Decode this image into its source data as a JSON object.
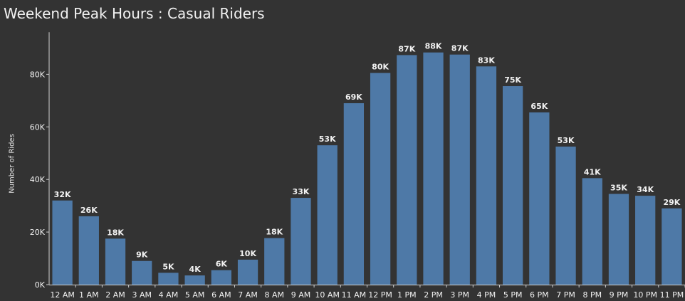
{
  "chart_data": {
    "type": "bar",
    "title": "Weekend Peak Hours : Casual Riders",
    "xlabel": "",
    "ylabel": "Number of Rides",
    "categories": [
      "12 AM",
      "1 AM",
      "2 AM",
      "3 AM",
      "4 AM",
      "5 AM",
      "6 AM",
      "7 AM",
      "8 AM",
      "9 AM",
      "10 AM",
      "11 AM",
      "12 PM",
      "1 PM",
      "2 PM",
      "3 PM",
      "4 PM",
      "5 PM",
      "6 PM",
      "7 PM",
      "8 PM",
      "9 PM",
      "10 PM",
      "11 PM"
    ],
    "values": [
      32000,
      26000,
      17500,
      9000,
      4500,
      3500,
      5500,
      9500,
      17700,
      33000,
      53000,
      69000,
      80500,
      87300,
      88300,
      87500,
      83000,
      75500,
      65500,
      52500,
      40500,
      34500,
      33800,
      29000
    ],
    "data_labels": [
      "32K",
      "26K",
      "18K",
      "9K",
      "5K",
      "4K",
      "6K",
      "10K",
      "18K",
      "33K",
      "53K",
      "69K",
      "80K",
      "87K",
      "88K",
      "87K",
      "83K",
      "75K",
      "65K",
      "53K",
      "41K",
      "35K",
      "34K",
      "29K"
    ],
    "ylim": [
      0,
      100000
    ],
    "yticks": [
      0,
      20000,
      40000,
      60000,
      80000
    ],
    "ytick_labels": [
      "0K",
      "20K",
      "40K",
      "60K",
      "80K"
    ],
    "grid": false,
    "colors": {
      "background": "#333333",
      "bar": "#4e79a7",
      "text": "#f2f2f2",
      "axis": "#cfcfcf"
    }
  }
}
